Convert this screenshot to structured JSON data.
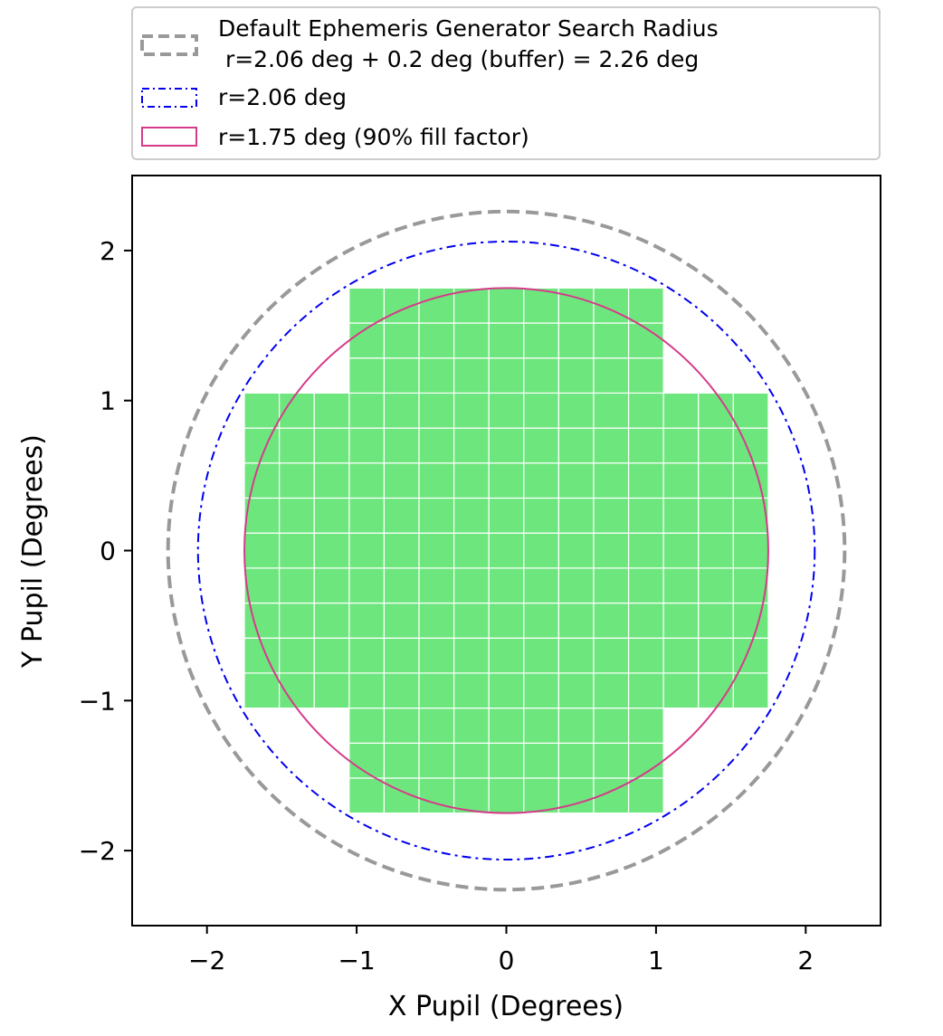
{
  "chart_data": {
    "type": "scatter",
    "xlabel": "X Pupil (Degrees)",
    "ylabel": "Y Pupil (Degrees)",
    "xlim": [
      -2.5,
      2.5
    ],
    "ylim": [
      -2.5,
      2.5
    ],
    "xticks": [
      -2,
      -1,
      0,
      1,
      2
    ],
    "yticks": [
      -2,
      -1,
      0,
      1,
      2
    ],
    "xtick_labels": [
      "−2",
      "−1",
      "0",
      "1",
      "2"
    ],
    "ytick_labels": [
      "−2",
      "−1",
      "0",
      "1",
      "2"
    ],
    "grid": false,
    "legend_position": "top",
    "circles": [
      {
        "label": "Default Ephemeris Generator Search Radius\n r=2.06 deg + 0.2 deg (buffer) = 2.26 deg",
        "radius": 2.26,
        "color": "#999999",
        "linestyle": "dashed"
      },
      {
        "label": "r=2.06 deg",
        "radius": 2.06,
        "color": "#0000ee",
        "linestyle": "dashdot"
      },
      {
        "label": "r=1.75 deg (90% fill factor)",
        "radius": 1.75,
        "color": "#d63a8a",
        "linestyle": "solid"
      }
    ],
    "detector_grid": {
      "fill_color": "#6ee67e",
      "edge_color": "#ffffff",
      "ccd_size": 0.2333,
      "regions": [
        {
          "x": [
            -1.05,
            1.05
          ],
          "y": [
            -1.75,
            1.75
          ]
        },
        {
          "x": [
            -1.75,
            -1.05
          ],
          "y": [
            -1.05,
            1.05
          ]
        },
        {
          "x": [
            1.05,
            1.75
          ],
          "y": [
            -1.05,
            1.05
          ]
        }
      ]
    }
  },
  "legend": {
    "entries": [
      {
        "lines": [
          "Default Ephemeris Generator Search Radius",
          " r=2.06 deg + 0.2 deg (buffer) = 2.26 deg"
        ]
      },
      {
        "lines": [
          "r=2.06 deg"
        ]
      },
      {
        "lines": [
          "r=1.75 deg (90% fill factor)"
        ]
      }
    ]
  }
}
